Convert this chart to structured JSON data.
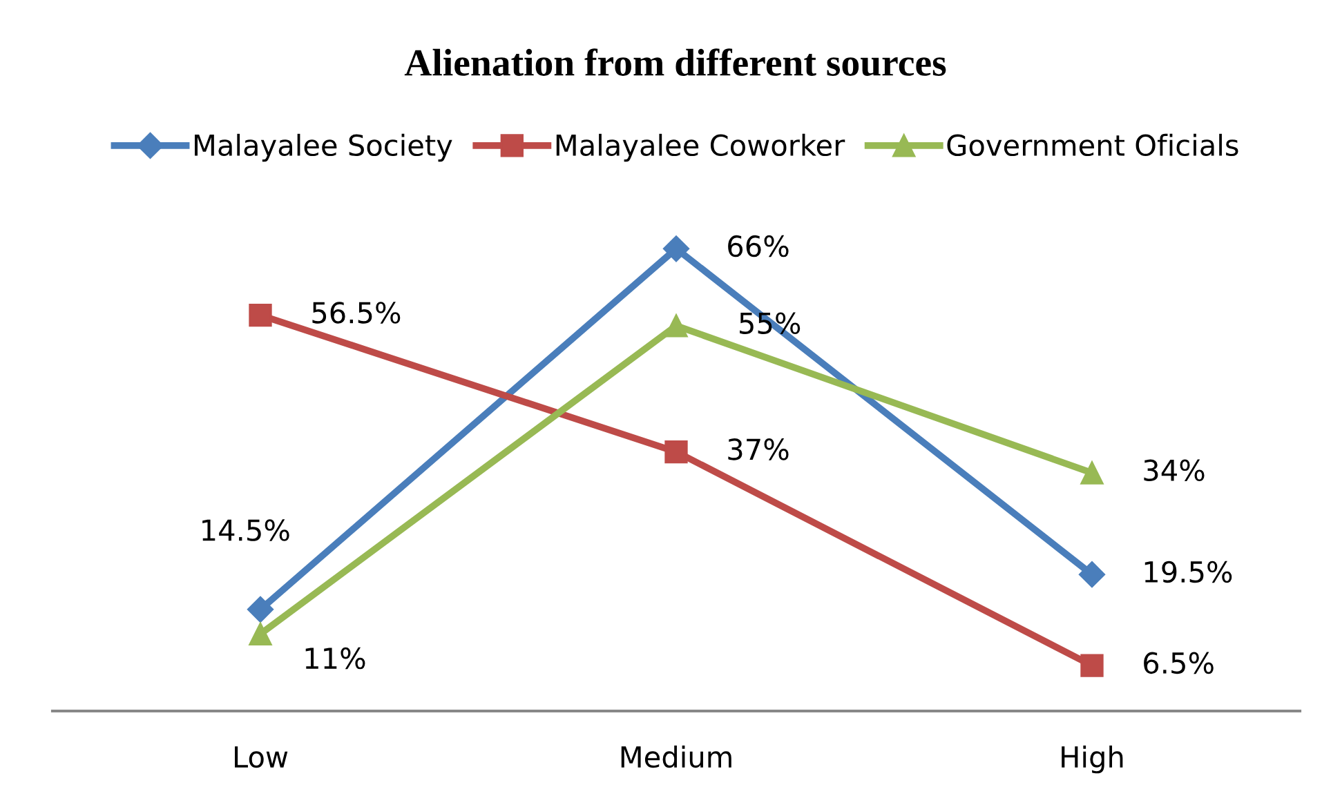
{
  "chart_data": {
    "type": "line",
    "title": "Alienation from different sources",
    "categories": [
      "Low",
      "Medium",
      "High"
    ],
    "series": [
      {
        "name": "Malayalee Society",
        "color": "#4a7ebb",
        "marker": "diamond",
        "values": [
          14.5,
          66,
          19.5
        ],
        "value_labels": [
          "14.5%",
          "66%",
          "19.5%"
        ]
      },
      {
        "name": "Malayalee Coworker",
        "color": "#be4b48",
        "marker": "square",
        "values": [
          56.5,
          37,
          6.5
        ],
        "value_labels": [
          "56.5%",
          "37%",
          "6.5%"
        ]
      },
      {
        "name": "Government Oficials",
        "color": "#98b954",
        "marker": "triangle",
        "values": [
          11,
          55,
          34
        ],
        "value_labels": [
          "11%",
          "55%",
          "34%"
        ]
      }
    ],
    "legend": "top",
    "grid": false
  }
}
